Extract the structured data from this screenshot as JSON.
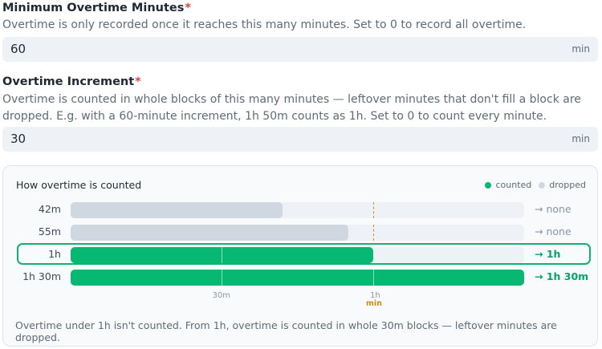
{
  "min_overtime": {
    "label": "Minimum Overtime Minutes",
    "required": "*",
    "help": "Overtime is only recorded once it reaches this many minutes. Set to 0 to record all overtime.",
    "value": "60",
    "unit": "min"
  },
  "increment": {
    "label": "Overtime Increment",
    "required": "*",
    "help": "Overtime is counted in whole blocks of this many minutes — leftover minutes that don't fill a block are dropped. E.g. with a 60-minute increment, 1h 50m counts as 1h. Set to 0 to count every minute.",
    "value": "30",
    "unit": "min"
  },
  "panel": {
    "title": "How overtime is counted",
    "legend": {
      "counted": "counted",
      "dropped": "dropped"
    },
    "colors": {
      "counted": "#07b872",
      "dropped": "#cfd7e0",
      "track": "#eef1f5",
      "min_marker": "#d28b13"
    },
    "axis": {
      "t30": "30m",
      "t60": "1h",
      "min_marker": "min"
    },
    "footer": "Overtime under 1h isn't counted. From 1h, overtime is counted in whole 30m blocks — leftover minutes are dropped."
  },
  "chart_data": {
    "type": "bar",
    "x_max_minutes": 90,
    "min_threshold_minutes": 60,
    "block_minutes": 30,
    "rows": [
      {
        "label": "42m",
        "minutes": 42,
        "status": "dropped",
        "result": "→ none"
      },
      {
        "label": "55m",
        "minutes": 55,
        "status": "dropped",
        "result": "→ none"
      },
      {
        "label": "1h",
        "minutes": 60,
        "status": "counted",
        "result": "→ 1h",
        "highlighted": true
      },
      {
        "label": "1h 30m",
        "minutes": 90,
        "status": "counted",
        "result": "→ 1h 30m"
      }
    ]
  }
}
